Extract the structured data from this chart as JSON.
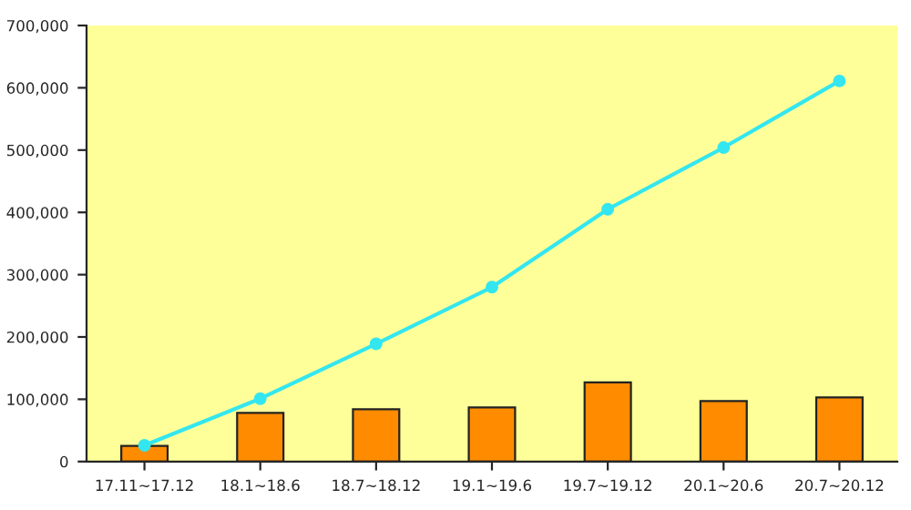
{
  "chart_data": {
    "type": "bar",
    "categories": [
      "17.11~17.12",
      "18.1~18.6",
      "18.7~18.12",
      "19.1~19.6",
      "19.7~19.12",
      "20.1~20.6",
      "20.7~20.12"
    ],
    "series": [
      {
        "color": "#ff8c00",
        "values": [
          25000,
          78000,
          84000,
          87000,
          127000,
          97000,
          103000
        ]
      },
      {
        "type": "line",
        "color": "#33e6f0",
        "marker": "circle",
        "values": [
          26000,
          101000,
          189000,
          280000,
          405000,
          504000,
          611000
        ]
      }
    ],
    "ylim": [
      0,
      700000
    ],
    "yticks": [
      {
        "value": 0,
        "label": "0"
      },
      {
        "value": 100000,
        "label": "100,000"
      },
      {
        "value": 200000,
        "label": "200,000"
      },
      {
        "value": 300000,
        "label": "300,000"
      },
      {
        "value": 400000,
        "label": "400,000"
      },
      {
        "value": 500000,
        "label": "500,000"
      },
      {
        "value": 600000,
        "label": "600,000"
      },
      {
        "value": 700000,
        "label": "700,000"
      }
    ],
    "grid": false,
    "legend": false
  }
}
